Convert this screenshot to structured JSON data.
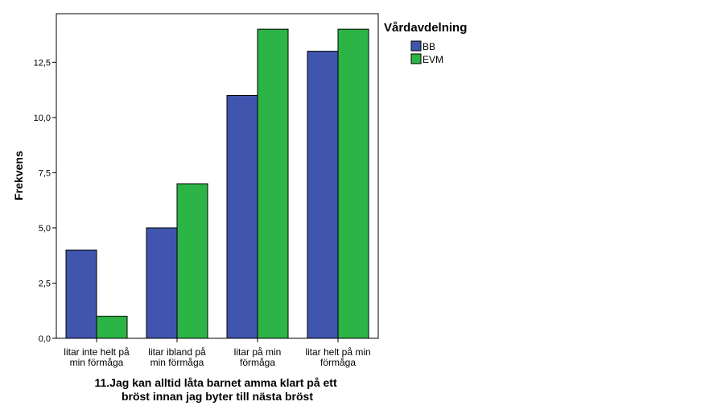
{
  "chart_data": {
    "type": "bar",
    "categories": [
      [
        "litar inte helt på",
        "min förmåga"
      ],
      [
        "litar ibland på",
        "min förmåga"
      ],
      [
        "litar på min",
        "förmåga"
      ],
      [
        "litar helt på min",
        "förmåga"
      ]
    ],
    "series": [
      {
        "name": "BB",
        "color": "#3F55AE",
        "values": [
          4,
          5,
          11,
          13
        ]
      },
      {
        "name": "EVM",
        "color": "#2DB446",
        "values": [
          1,
          7,
          14,
          14
        ]
      }
    ],
    "xlabel": [
      "11.Jag kan alltid låta barnet amma klart på ett",
      "bröst innan jag byter till nästa bröst"
    ],
    "ylabel": "Frekvens",
    "ylim": [
      0,
      14.7
    ],
    "yticks": [
      0,
      2.5,
      5,
      7.5,
      10,
      12.5
    ],
    "ytick_labels": [
      "0,0",
      "2,5",
      "5,0",
      "7,5",
      "10,0",
      "12,5"
    ],
    "legend_title": "Vårdavdelning",
    "legend_position": "right",
    "grid": false
  }
}
